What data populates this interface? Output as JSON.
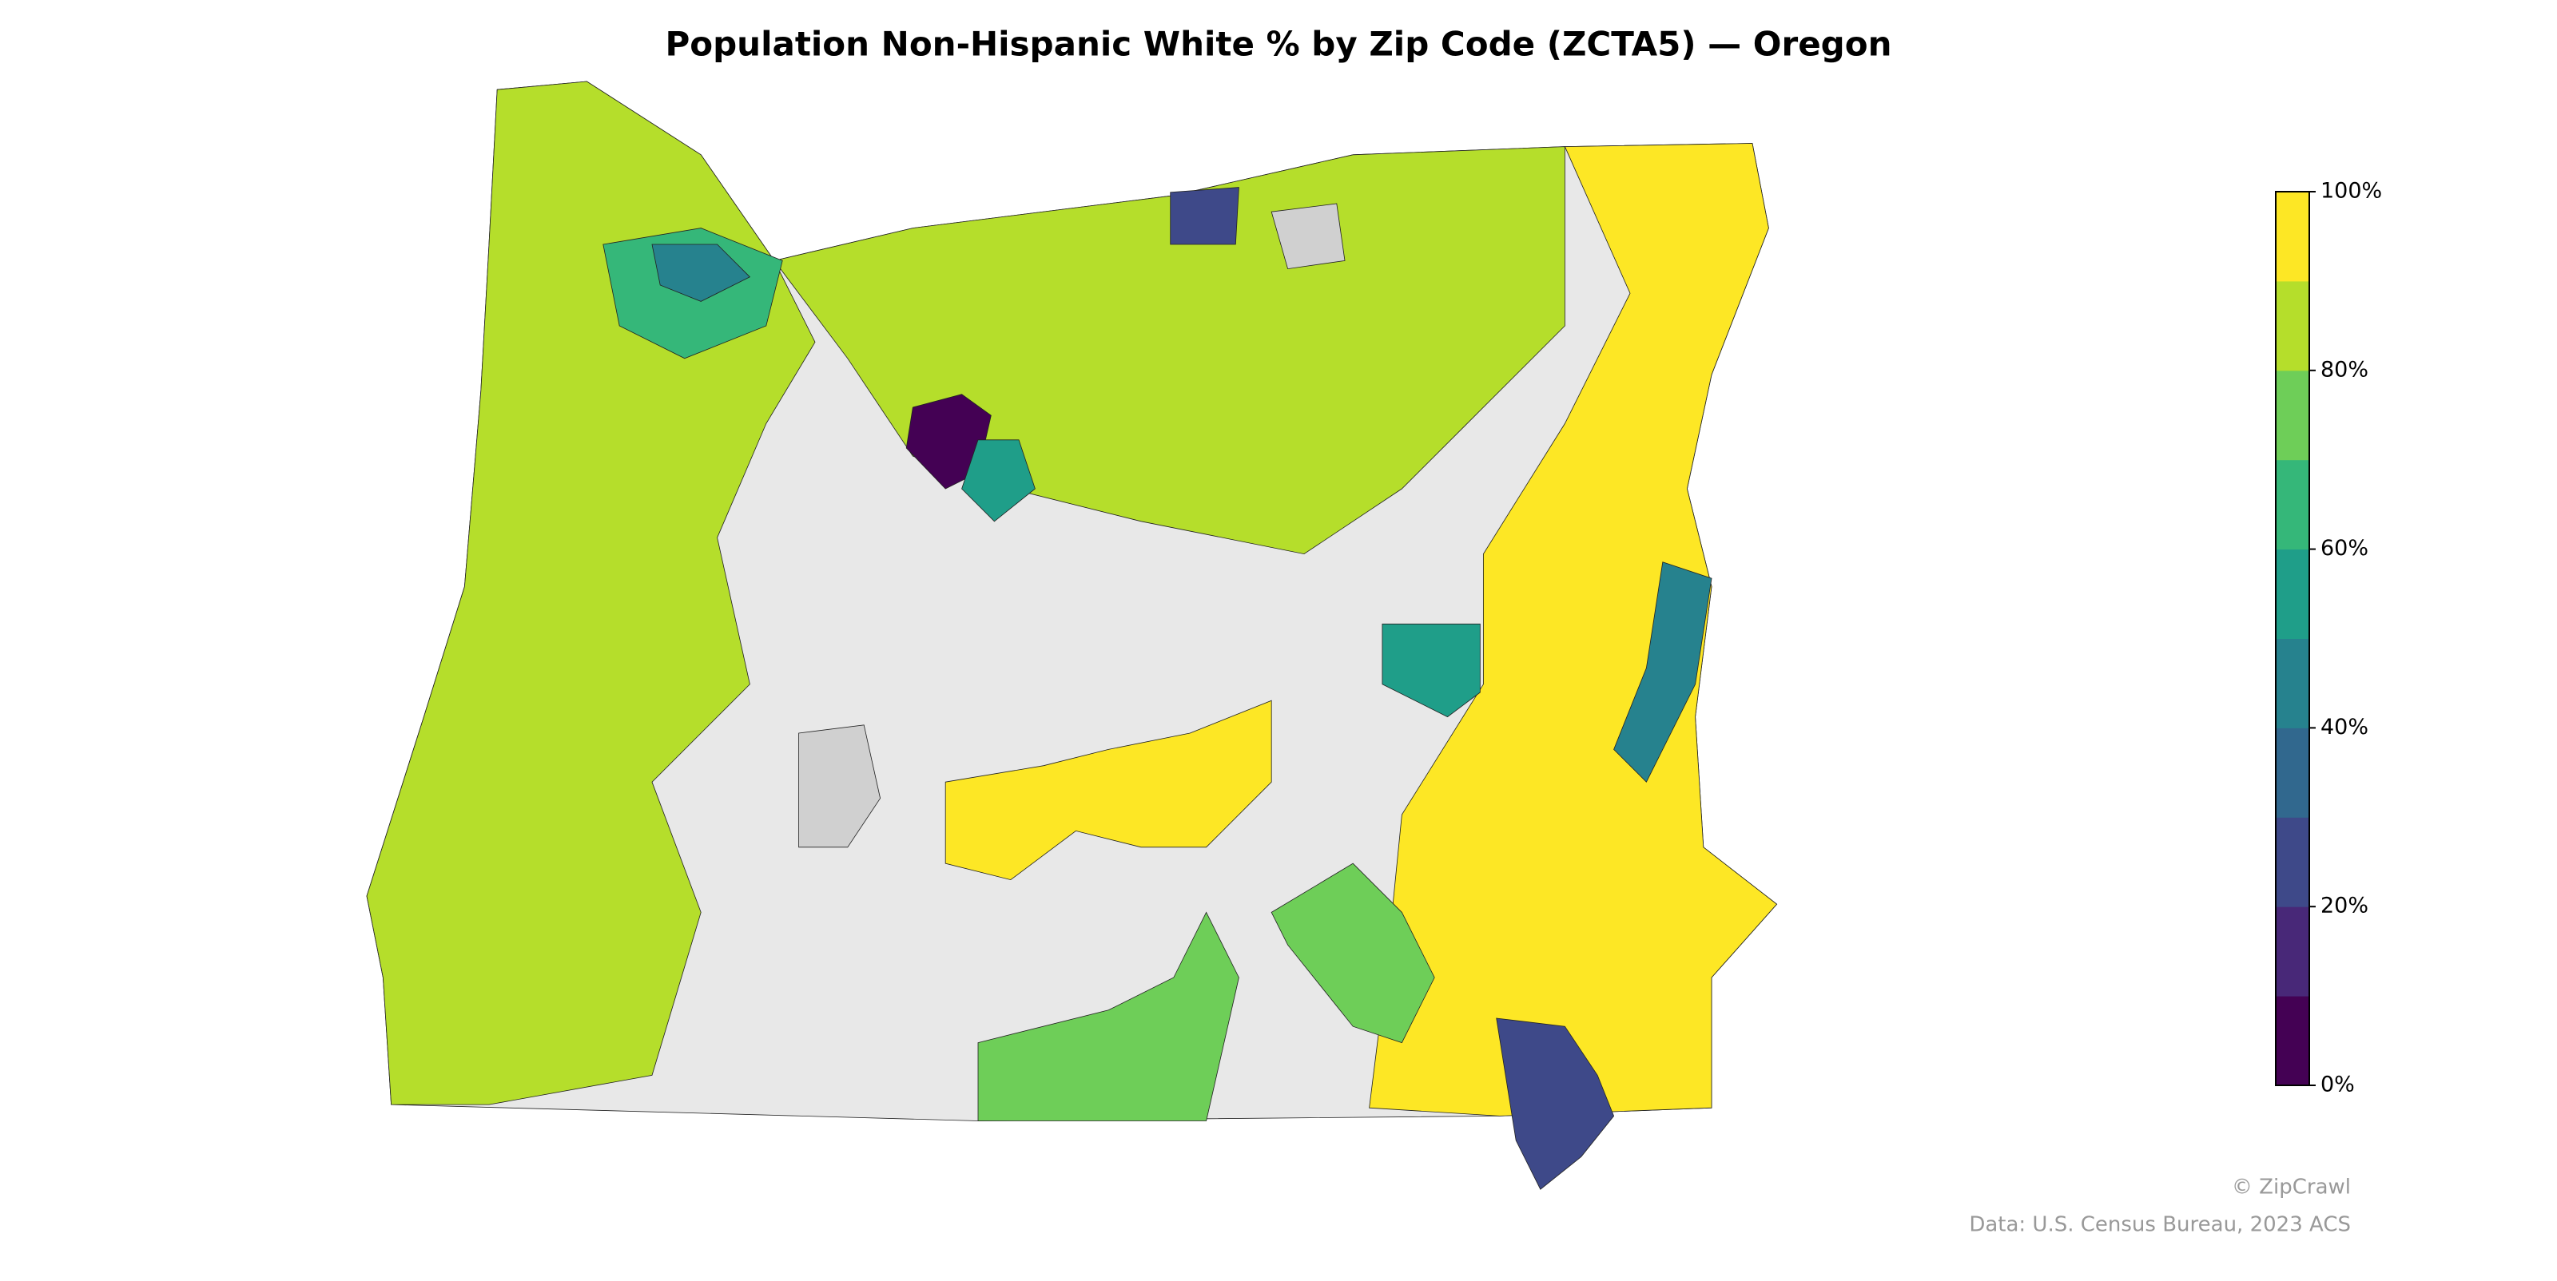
{
  "title": "Population Non-Hispanic White % by Zip Code (ZCTA5) — Oregon",
  "colorbar": {
    "lim": [
      0,
      100
    ],
    "ticks": [
      {
        "value": 0,
        "label": "0%"
      },
      {
        "value": 20,
        "label": "20%"
      },
      {
        "value": 40,
        "label": "40%"
      },
      {
        "value": 60,
        "label": "60%"
      },
      {
        "value": 80,
        "label": "80%"
      },
      {
        "value": 100,
        "label": "100%"
      }
    ],
    "colors": [
      "#440154",
      "#482878",
      "#3e4989",
      "#31688e",
      "#26828e",
      "#1f9e89",
      "#35b779",
      "#6ece58",
      "#b5de2b",
      "#fde725"
    ]
  },
  "credits": [
    "© ZipCrawl",
    "Data: U.S. Census Bureau, 2023 ACS"
  ]
}
